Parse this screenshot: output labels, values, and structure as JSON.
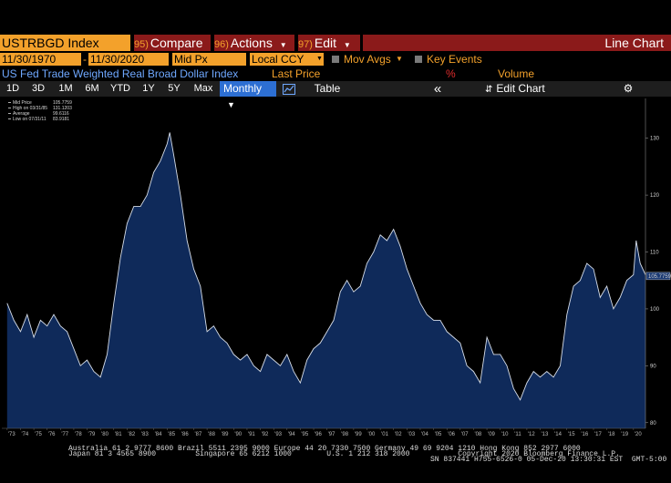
{
  "header": {
    "ticker": "USTRBGD Index",
    "compare_num": "95)",
    "compare": "Compare",
    "actions_num": "96)",
    "actions": "Actions",
    "edit_num": "97)",
    "edit": "Edit",
    "chart_type": "Line Chart"
  },
  "controls": {
    "start_date": "11/30/1970",
    "end_date": "11/30/2020",
    "price_field": "Mid Px",
    "currency": "Local CCY",
    "mov_avgs": "Mov Avgs",
    "key_events": "Key Events"
  },
  "subheader": {
    "security_name": "US Fed Trade Weighted Real Broad Dollar Index",
    "last_price": "Last Price",
    "pct": "%",
    "volume": "Volume"
  },
  "toolbar": {
    "ranges": [
      "1D",
      "3D",
      "1M",
      "6M",
      "YTD",
      "1Y",
      "5Y",
      "Max"
    ],
    "frequency": "Monthly",
    "table": "Table",
    "collapse": "«",
    "edit_chart": "Edit Chart"
  },
  "legend": {
    "items": [
      {
        "label": "Mid Price",
        "value": "105.7759"
      },
      {
        "label": "High on 03/31/85",
        "value": "131.1203"
      },
      {
        "label": "Average",
        "value": "99.6116"
      },
      {
        "label": "Low on 07/31/11",
        "value": "83.9181"
      }
    ]
  },
  "last_value_tag": "105.7759",
  "chart_data": {
    "type": "area",
    "series": [
      {
        "name": "Mid Price",
        "x": [
          1973,
          1973.5,
          1974,
          1974.5,
          1975,
          1975.5,
          1976,
          1976.5,
          1977,
          1977.5,
          1978,
          1978.5,
          1979,
          1979.5,
          1980,
          1980.5,
          1981,
          1981.5,
          1982,
          1982.5,
          1983,
          1983.5,
          1984,
          1984.5,
          1985,
          1985.2,
          1985.5,
          1986,
          1986.5,
          1987,
          1987.5,
          1988,
          1988.5,
          1989,
          1989.5,
          1990,
          1990.5,
          1991,
          1991.5,
          1992,
          1992.5,
          1993,
          1993.5,
          1994,
          1994.5,
          1995,
          1995.5,
          1996,
          1996.5,
          1997,
          1997.5,
          1998,
          1998.5,
          1999,
          1999.5,
          2000,
          2000.5,
          2001,
          2001.5,
          2002,
          2002.5,
          2003,
          2003.5,
          2004,
          2004.5,
          2005,
          2005.5,
          2006,
          2006.5,
          2007,
          2007.5,
          2008,
          2008.5,
          2009,
          2009.5,
          2010,
          2010.5,
          2011,
          2011.5,
          2012,
          2012.5,
          2013,
          2013.5,
          2014,
          2014.5,
          2015,
          2015.5,
          2016,
          2016.5,
          2017,
          2017.5,
          2018,
          2018.5,
          2019,
          2019.5,
          2020,
          2020.2,
          2020.5,
          2020.9
        ],
        "values": [
          101,
          98,
          96,
          99,
          95,
          98,
          97,
          99,
          97,
          96,
          93,
          90,
          91,
          89,
          88,
          92,
          101,
          109,
          115,
          118,
          118,
          120,
          124,
          126,
          129,
          131,
          127,
          120,
          112,
          107,
          104,
          96,
          97,
          95,
          94,
          92,
          91,
          92,
          90,
          89,
          92,
          91,
          90,
          92,
          89,
          87,
          91,
          93,
          94,
          96,
          98,
          103,
          105,
          103,
          104,
          108,
          110,
          113,
          112,
          114,
          111,
          107,
          104,
          101,
          99,
          98,
          98,
          96,
          95,
          94,
          90,
          89,
          87,
          95,
          92,
          92,
          90,
          86,
          84,
          87,
          89,
          88,
          89,
          88,
          90,
          99,
          104,
          105,
          108,
          107,
          102,
          104,
          100,
          102,
          105,
          106,
          112,
          108,
          106
        ]
      }
    ],
    "xlabel": "",
    "ylabel": "",
    "x_ticks": [
      "'73",
      "'74",
      "'75",
      "'76",
      "'77",
      "'78",
      "'79",
      "'80",
      "'81",
      "'82",
      "'83",
      "'84",
      "'85",
      "'86",
      "'87",
      "'88",
      "'89",
      "'90",
      "'91",
      "'92",
      "'93",
      "'94",
      "'95",
      "'96",
      "'97",
      "'98",
      "'99",
      "'00",
      "'01",
      "'02",
      "'03",
      "'04",
      "'05",
      "'06",
      "'07",
      "'08",
      "'09",
      "'10",
      "'11",
      "'12",
      "'13",
      "'14",
      "'15",
      "'16",
      "'17",
      "'18",
      "'19",
      "'20"
    ],
    "y_ticks": [
      80,
      90,
      100,
      110,
      120,
      130
    ],
    "xlim": [
      1972.6,
      2020.9
    ],
    "ylim": [
      79,
      137
    ],
    "grid": false,
    "legend_position": "top-left",
    "fill_color": "#0f2a5a",
    "line_color": "#d6dde8"
  },
  "footer": {
    "line1": "Australia 61 2 9777 8600 Brazil 5511 2395 9000 Europe 44 20 7330 7500 Germany 49 69 9204 1210 Hong Kong 852 2977 6000",
    "line2": "Japan 81 3 4565 8900         Singapore 65 6212 1000        U.S. 1 212 318 2000           Copyright 2020 Bloomberg Finance L.P.",
    "line3": "SN 837441 H755-6526-0 05-Dec-20 13:30:31 EST  GMT-5:00"
  }
}
